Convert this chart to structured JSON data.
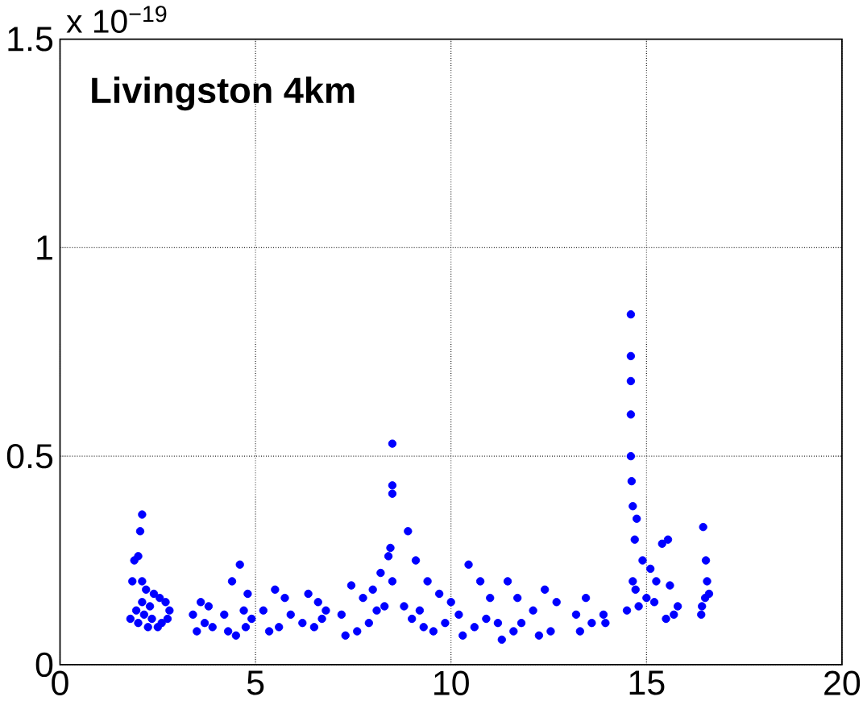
{
  "chart_data": {
    "type": "scatter",
    "annotations": [
      "Livingston 4km",
      "x 10$^{−19}$"
    ],
    "series": [
      {
        "color": "#0000ff",
        "x": [
          1.8,
          1.85,
          1.9,
          1.95,
          2.0,
          2.0,
          2.05,
          2.1,
          2.1,
          2.1,
          2.15,
          2.2,
          2.25,
          2.3,
          2.35,
          2.4,
          2.5,
          2.55,
          2.6,
          2.7,
          2.75,
          2.8,
          3.4,
          3.5,
          3.6,
          3.7,
          3.8,
          3.9,
          4.2,
          4.3,
          4.4,
          4.5,
          4.6,
          4.7,
          4.75,
          4.8,
          4.9,
          5.2,
          5.35,
          5.5,
          5.6,
          5.75,
          5.9,
          6.2,
          6.35,
          6.5,
          6.6,
          6.7,
          6.8,
          7.2,
          7.3,
          7.45,
          7.6,
          7.75,
          7.9,
          8.0,
          8.1,
          8.2,
          8.3,
          8.4,
          8.45,
          8.5,
          8.5,
          8.5,
          8.5,
          8.8,
          8.9,
          9.0,
          9.1,
          9.2,
          9.3,
          9.4,
          9.55,
          9.7,
          9.85,
          10.0,
          10.2,
          10.3,
          10.45,
          10.6,
          10.75,
          10.9,
          11.0,
          11.2,
          11.3,
          11.45,
          11.6,
          11.7,
          11.8,
          12.1,
          12.25,
          12.4,
          12.55,
          12.7,
          13.2,
          13.3,
          13.45,
          13.6,
          13.9,
          13.95,
          14.5,
          14.6,
          14.6,
          14.6,
          14.6,
          14.6,
          14.62,
          14.65,
          14.65,
          14.7,
          14.72,
          14.75,
          14.8,
          14.9,
          15.0,
          15.1,
          15.2,
          15.25,
          15.4,
          15.5,
          15.55,
          15.6,
          15.7,
          15.8,
          16.4,
          16.42,
          16.45,
          16.5,
          16.52,
          16.55,
          16.6
        ],
        "values": [
          0.11,
          0.2,
          0.25,
          0.13,
          0.26,
          0.1,
          0.32,
          0.36,
          0.15,
          0.2,
          0.12,
          0.18,
          0.09,
          0.14,
          0.11,
          0.17,
          0.09,
          0.16,
          0.1,
          0.15,
          0.11,
          0.13,
          0.12,
          0.08,
          0.15,
          0.1,
          0.14,
          0.09,
          0.12,
          0.08,
          0.2,
          0.07,
          0.24,
          0.13,
          0.09,
          0.17,
          0.11,
          0.13,
          0.08,
          0.18,
          0.09,
          0.16,
          0.12,
          0.1,
          0.17,
          0.09,
          0.15,
          0.11,
          0.13,
          0.12,
          0.07,
          0.19,
          0.08,
          0.16,
          0.1,
          0.18,
          0.13,
          0.22,
          0.14,
          0.26,
          0.28,
          0.53,
          0.43,
          0.41,
          0.2,
          0.14,
          0.32,
          0.11,
          0.25,
          0.13,
          0.09,
          0.2,
          0.08,
          0.17,
          0.1,
          0.15,
          0.12,
          0.07,
          0.24,
          0.09,
          0.2,
          0.11,
          0.16,
          0.1,
          0.06,
          0.2,
          0.08,
          0.16,
          0.1,
          0.13,
          0.07,
          0.18,
          0.08,
          0.15,
          0.12,
          0.08,
          0.16,
          0.1,
          0.12,
          0.1,
          0.13,
          0.84,
          0.74,
          0.68,
          0.6,
          0.5,
          0.44,
          0.38,
          0.2,
          0.3,
          0.18,
          0.35,
          0.14,
          0.25,
          0.16,
          0.23,
          0.15,
          0.2,
          0.29,
          0.11,
          0.3,
          0.19,
          0.12,
          0.14,
          0.12,
          0.14,
          0.33,
          0.16,
          0.25,
          0.2,
          0.17
        ]
      }
    ],
    "xlim": [
      0,
      20
    ],
    "ylim": [
      0,
      1.5
    ],
    "xticks": [
      0,
      5,
      10,
      15,
      20
    ],
    "yticks": [
      0,
      0.5,
      1,
      1.5
    ],
    "grid": true,
    "marker": "circle"
  }
}
